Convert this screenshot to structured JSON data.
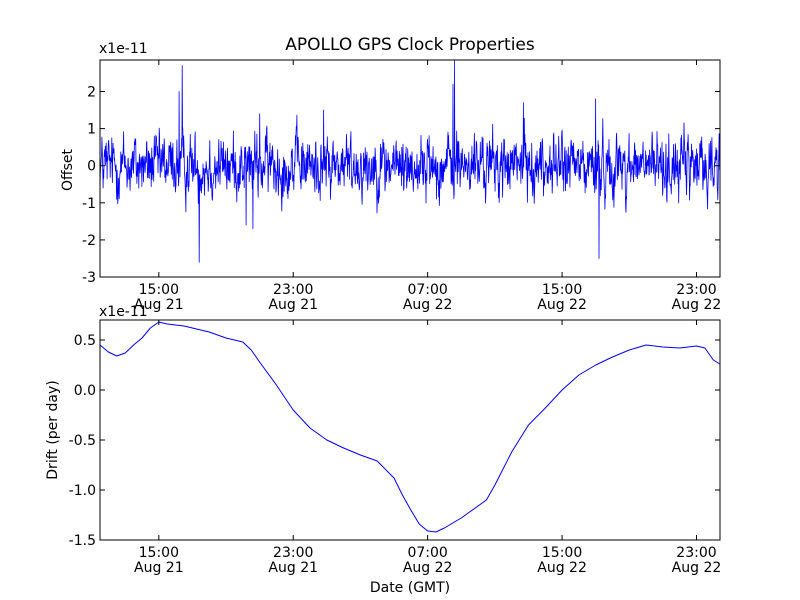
{
  "figure": {
    "title": "APOLLO GPS Clock Properties",
    "xlabel": "Date (GMT)"
  },
  "chart_data": [
    {
      "type": "line",
      "name": "offset",
      "ylabel": "Offset",
      "scale_label": "x1e-11",
      "ylim": [
        -3,
        2.85
      ],
      "yticks": [
        -3,
        -2,
        -1,
        0,
        1,
        2
      ],
      "ytick_labels": [
        "-3",
        "-2",
        "-1",
        "0",
        "1",
        "2"
      ],
      "xlim_hours": [
        11.5,
        48.4
      ],
      "xticks_hours": [
        15,
        23,
        31,
        39,
        47
      ],
      "xtick_labels": [
        [
          "15:00",
          "Aug 21"
        ],
        [
          "23:00",
          "Aug 21"
        ],
        [
          "07:00",
          "Aug 22"
        ],
        [
          "15:00",
          "Aug 22"
        ],
        [
          "23:00",
          "Aug 22"
        ]
      ],
      "series": [
        {
          "name": "offset",
          "color": "#0000ff",
          "samples": 2000,
          "seed": 12345,
          "std": 0.5,
          "bursts": [
            {
              "hour": 16.4,
              "value": 2.7
            },
            {
              "hour": 16.2,
              "value": 2.0
            },
            {
              "hour": 17.4,
              "value": -2.6
            },
            {
              "hour": 20.2,
              "value": -1.6
            },
            {
              "hour": 20.6,
              "value": -1.7
            },
            {
              "hour": 32.6,
              "value": 2.85
            },
            {
              "hour": 32.5,
              "value": 2.2
            },
            {
              "hour": 41.2,
              "value": -2.5
            },
            {
              "hour": 41.0,
              "value": 1.8
            },
            {
              "hour": 21.0,
              "value": 1.4
            },
            {
              "hour": 24.8,
              "value": 1.5
            },
            {
              "hour": 36.7,
              "value": 1.7
            }
          ]
        }
      ]
    },
    {
      "type": "line",
      "name": "drift",
      "ylabel": "Drift (per day)",
      "scale_label": "x1e-11",
      "ylim": [
        -1.5,
        0.7
      ],
      "yticks": [
        -1.5,
        -1.0,
        -0.5,
        0.0,
        0.5
      ],
      "ytick_labels": [
        "-1.5",
        "-1.0",
        "-0.5",
        "0.0",
        "0.5"
      ],
      "xlim_hours": [
        11.5,
        48.4
      ],
      "xticks_hours": [
        15,
        23,
        31,
        39,
        47
      ],
      "xtick_labels": [
        [
          "15:00",
          "Aug 21"
        ],
        [
          "23:00",
          "Aug 21"
        ],
        [
          "07:00",
          "Aug 22"
        ],
        [
          "15:00",
          "Aug 22"
        ],
        [
          "23:00",
          "Aug 22"
        ]
      ],
      "series": [
        {
          "name": "drift",
          "color": "#0000ff",
          "x_hours": [
            11.5,
            12.0,
            12.5,
            13.0,
            13.5,
            14.0,
            14.5,
            15.0,
            15.5,
            16.0,
            16.5,
            17.0,
            18.0,
            19.0,
            20.0,
            20.5,
            21.0,
            22.0,
            23.0,
            24.0,
            25.0,
            26.0,
            27.0,
            28.0,
            29.0,
            29.5,
            30.0,
            30.5,
            31.0,
            31.5,
            32.0,
            33.0,
            34.0,
            34.5,
            35.0,
            36.0,
            37.0,
            38.0,
            39.0,
            40.0,
            41.0,
            42.0,
            43.0,
            44.0,
            45.0,
            46.0,
            47.0,
            47.5,
            48.0,
            48.4
          ],
          "values": [
            0.45,
            0.38,
            0.34,
            0.37,
            0.45,
            0.52,
            0.62,
            0.68,
            0.66,
            0.65,
            0.64,
            0.62,
            0.58,
            0.52,
            0.48,
            0.4,
            0.28,
            0.05,
            -0.2,
            -0.38,
            -0.5,
            -0.58,
            -0.65,
            -0.71,
            -0.88,
            -1.05,
            -1.2,
            -1.34,
            -1.41,
            -1.42,
            -1.38,
            -1.28,
            -1.16,
            -1.1,
            -0.95,
            -0.62,
            -0.35,
            -0.18,
            0.0,
            0.15,
            0.25,
            0.33,
            0.4,
            0.45,
            0.43,
            0.42,
            0.44,
            0.42,
            0.3,
            0.26
          ]
        }
      ]
    }
  ]
}
